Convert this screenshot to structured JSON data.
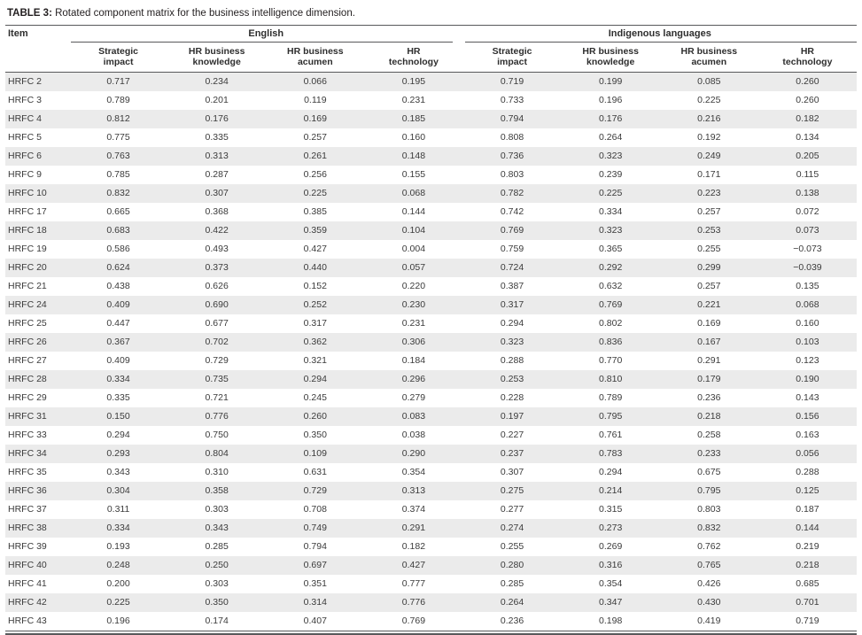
{
  "table": {
    "title_label": "TABLE 3:",
    "title_text": "Rotated component matrix for the business intelligence dimension.",
    "item_header": "Item",
    "groups": [
      {
        "label": "English",
        "columns": [
          "Strategic impact",
          "HR business knowledge",
          "HR business acumen",
          "HR technology"
        ]
      },
      {
        "label": "Indigenous languages",
        "columns": [
          "Strategic impact",
          "HR business knowledge",
          "HR business acumen",
          "HR technology"
        ]
      }
    ],
    "rows": [
      {
        "item": "HRFC 2",
        "values": [
          "0.717",
          "0.234",
          "0.066",
          "0.195",
          "0.719",
          "0.199",
          "0.085",
          "0.260"
        ]
      },
      {
        "item": "HRFC 3",
        "values": [
          "0.789",
          "0.201",
          "0.119",
          "0.231",
          "0.733",
          "0.196",
          "0.225",
          "0.260"
        ]
      },
      {
        "item": "HRFC 4",
        "values": [
          "0.812",
          "0.176",
          "0.169",
          "0.185",
          "0.794",
          "0.176",
          "0.216",
          "0.182"
        ]
      },
      {
        "item": "HRFC 5",
        "values": [
          "0.775",
          "0.335",
          "0.257",
          "0.160",
          "0.808",
          "0.264",
          "0.192",
          "0.134"
        ]
      },
      {
        "item": "HRFC 6",
        "values": [
          "0.763",
          "0.313",
          "0.261",
          "0.148",
          "0.736",
          "0.323",
          "0.249",
          "0.205"
        ]
      },
      {
        "item": "HRFC 9",
        "values": [
          "0.785",
          "0.287",
          "0.256",
          "0.155",
          "0.803",
          "0.239",
          "0.171",
          "0.115"
        ]
      },
      {
        "item": "HRFC 10",
        "values": [
          "0.832",
          "0.307",
          "0.225",
          "0.068",
          "0.782",
          "0.225",
          "0.223",
          "0.138"
        ]
      },
      {
        "item": "HRFC 17",
        "values": [
          "0.665",
          "0.368",
          "0.385",
          "0.144",
          "0.742",
          "0.334",
          "0.257",
          "0.072"
        ]
      },
      {
        "item": "HRFC 18",
        "values": [
          "0.683",
          "0.422",
          "0.359",
          "0.104",
          "0.769",
          "0.323",
          "0.253",
          "0.073"
        ]
      },
      {
        "item": "HRFC 19",
        "values": [
          "0.586",
          "0.493",
          "0.427",
          "0.004",
          "0.759",
          "0.365",
          "0.255",
          "−0.073"
        ]
      },
      {
        "item": "HRFC 20",
        "values": [
          "0.624",
          "0.373",
          "0.440",
          "0.057",
          "0.724",
          "0.292",
          "0.299",
          "−0.039"
        ]
      },
      {
        "item": "HRFC 21",
        "values": [
          "0.438",
          "0.626",
          "0.152",
          "0.220",
          "0.387",
          "0.632",
          "0.257",
          "0.135"
        ]
      },
      {
        "item": "HRFC 24",
        "values": [
          "0.409",
          "0.690",
          "0.252",
          "0.230",
          "0.317",
          "0.769",
          "0.221",
          "0.068"
        ]
      },
      {
        "item": "HRFC 25",
        "values": [
          "0.447",
          "0.677",
          "0.317",
          "0.231",
          "0.294",
          "0.802",
          "0.169",
          "0.160"
        ]
      },
      {
        "item": "HRFC 26",
        "values": [
          "0.367",
          "0.702",
          "0.362",
          "0.306",
          "0.323",
          "0.836",
          "0.167",
          "0.103"
        ]
      },
      {
        "item": "HRFC 27",
        "values": [
          "0.409",
          "0.729",
          "0.321",
          "0.184",
          "0.288",
          "0.770",
          "0.291",
          "0.123"
        ]
      },
      {
        "item": "HRFC 28",
        "values": [
          "0.334",
          "0.735",
          "0.294",
          "0.296",
          "0.253",
          "0.810",
          "0.179",
          "0.190"
        ]
      },
      {
        "item": "HRFC 29",
        "values": [
          "0.335",
          "0.721",
          "0.245",
          "0.279",
          "0.228",
          "0.789",
          "0.236",
          "0.143"
        ]
      },
      {
        "item": "HRFC 31",
        "values": [
          "0.150",
          "0.776",
          "0.260",
          "0.083",
          "0.197",
          "0.795",
          "0.218",
          "0.156"
        ]
      },
      {
        "item": "HRFC 33",
        "values": [
          "0.294",
          "0.750",
          "0.350",
          "0.038",
          "0.227",
          "0.761",
          "0.258",
          "0.163"
        ]
      },
      {
        "item": "HRFC 34",
        "values": [
          "0.293",
          "0.804",
          "0.109",
          "0.290",
          "0.237",
          "0.783",
          "0.233",
          "0.056"
        ]
      },
      {
        "item": "HRFC 35",
        "values": [
          "0.343",
          "0.310",
          "0.631",
          "0.354",
          "0.307",
          "0.294",
          "0.675",
          "0.288"
        ]
      },
      {
        "item": "HRFC 36",
        "values": [
          "0.304",
          "0.358",
          "0.729",
          "0.313",
          "0.275",
          "0.214",
          "0.795",
          "0.125"
        ]
      },
      {
        "item": "HRFC 37",
        "values": [
          "0.311",
          "0.303",
          "0.708",
          "0.374",
          "0.277",
          "0.315",
          "0.803",
          "0.187"
        ]
      },
      {
        "item": "HRFC 38",
        "values": [
          "0.334",
          "0.343",
          "0.749",
          "0.291",
          "0.274",
          "0.273",
          "0.832",
          "0.144"
        ]
      },
      {
        "item": "HRFC 39",
        "values": [
          "0.193",
          "0.285",
          "0.794",
          "0.182",
          "0.255",
          "0.269",
          "0.762",
          "0.219"
        ]
      },
      {
        "item": "HRFC 40",
        "values": [
          "0.248",
          "0.250",
          "0.697",
          "0.427",
          "0.280",
          "0.316",
          "0.765",
          "0.218"
        ]
      },
      {
        "item": "HRFC 41",
        "values": [
          "0.200",
          "0.303",
          "0.351",
          "0.777",
          "0.285",
          "0.354",
          "0.426",
          "0.685"
        ]
      },
      {
        "item": "HRFC 42",
        "values": [
          "0.225",
          "0.350",
          "0.314",
          "0.776",
          "0.264",
          "0.347",
          "0.430",
          "0.701"
        ]
      },
      {
        "item": "HRFC 43",
        "values": [
          "0.196",
          "0.174",
          "0.407",
          "0.769",
          "0.236",
          "0.198",
          "0.419",
          "0.719"
        ]
      }
    ]
  }
}
